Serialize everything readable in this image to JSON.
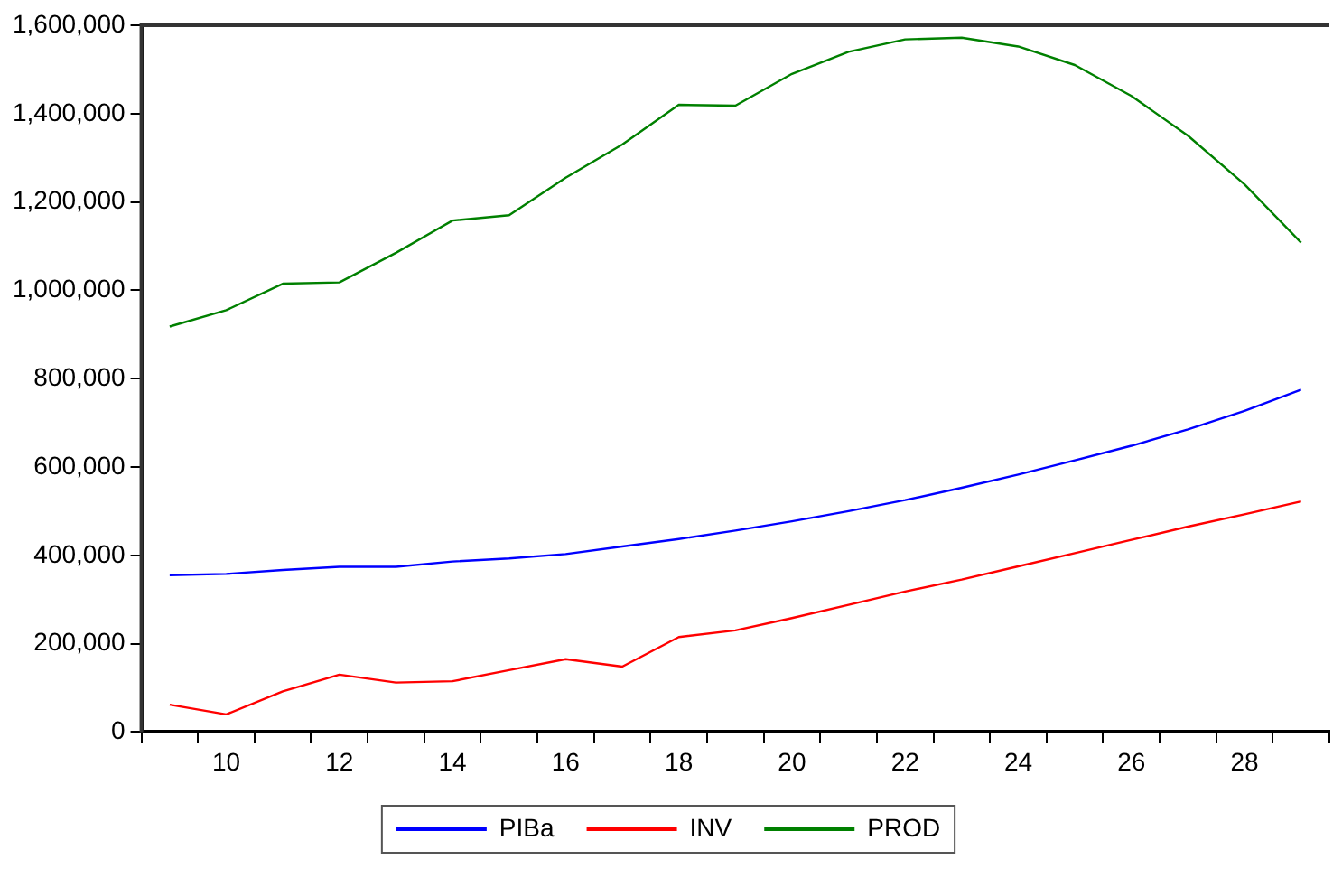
{
  "chart_data": {
    "type": "line",
    "categories": [
      null,
      "10",
      null,
      "12",
      null,
      "14",
      null,
      "16",
      null,
      "18",
      null,
      "20",
      null,
      "22",
      null,
      "24",
      null,
      "26",
      null,
      "28",
      null
    ],
    "series": [
      {
        "name": "PIBa",
        "color": "#0000ff",
        "values": [
          355000,
          358000,
          367000,
          374000,
          374000,
          386000,
          393000,
          403000,
          420000,
          437000,
          456000,
          477000,
          500000,
          525000,
          553000,
          583000,
          615000,
          648000,
          685000,
          727000,
          775000
        ]
      },
      {
        "name": "INV",
        "color": "#ff0000",
        "values": [
          62000,
          40000,
          92000,
          130000,
          112000,
          115000,
          140000,
          165000,
          148000,
          215000,
          230000,
          258000,
          288000,
          318000,
          345000,
          375000,
          405000,
          435000,
          465000,
          493000,
          522000
        ]
      },
      {
        "name": "PROD",
        "color": "#008000",
        "values": [
          918000,
          955000,
          1015000,
          1018000,
          1085000,
          1158000,
          1170000,
          1255000,
          1330000,
          1420000,
          1418000,
          1490000,
          1540000,
          1568000,
          1572000,
          1552000,
          1510000,
          1440000,
          1350000,
          1240000,
          1108000
        ]
      }
    ],
    "ylim": [
      0,
      1600000
    ],
    "yticks": [
      {
        "value": 0,
        "label": "0"
      },
      {
        "value": 200000,
        "label": "200,000"
      },
      {
        "value": 400000,
        "label": "400,000"
      },
      {
        "value": 600000,
        "label": "600,000"
      },
      {
        "value": 800000,
        "label": "800,000"
      },
      {
        "value": 1000000,
        "label": "1,000,000"
      },
      {
        "value": 1200000,
        "label": "1,200,000"
      },
      {
        "value": 1400000,
        "label": "1,400,000"
      },
      {
        "value": 1600000,
        "label": "1,600,000"
      }
    ],
    "grid": false,
    "legend": "bottom",
    "marker": "none",
    "line_style": "solid"
  }
}
